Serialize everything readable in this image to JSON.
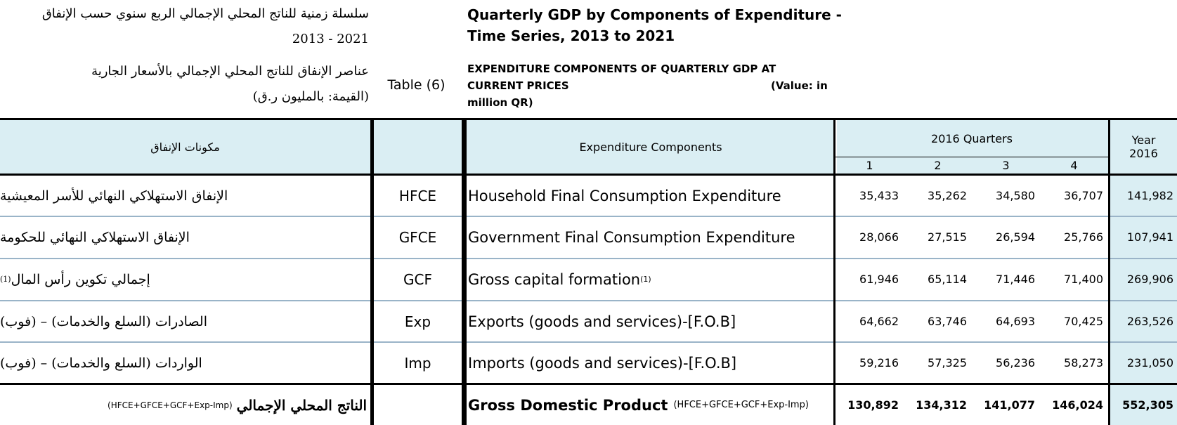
{
  "header": {
    "ar_title_line1": "سلسلة زمنية للناتج المحلي الإجمالي الربع سنوي حسب الإنفاق",
    "ar_title_line2": "2021 - 2013",
    "ar_subtitle_line1": "عناصر الإنفاق للناتج المحلي الإجمالي بالأسعار الجارية",
    "ar_subtitle_line2": "(القيمة: بالمليون ر.ق)",
    "table_label": "Table (6)",
    "en_title_line1": "Quarterly GDP by Components of Expenditure -",
    "en_title_line2": "Time Series, 2013 to 2021",
    "en_subtitle_line1": "EXPENDITURE COMPONENTS OF QUARTERLY GDP AT",
    "en_subtitle_line2": "CURRENT PRICES",
    "en_subtitle_line3": "million QR)",
    "en_unit_label": "(Value: in"
  },
  "columns": {
    "ar_components": "مكونات الإنفاق",
    "en_components": "Expenditure Components",
    "quarters_group": "2016 Quarters",
    "quarters": [
      "1",
      "2",
      "3",
      "4"
    ],
    "year_line1": "Year",
    "year_line2": "2016"
  },
  "rows": [
    {
      "ar": "الإنفاق الاستهلاكي النهائي للأسر المعيشية",
      "ar_sup": "",
      "code": "HFCE",
      "en": "Household Final Consumption Expenditure",
      "en_sup": "",
      "q1": "35,433",
      "q2": "35,262",
      "q3": "34,580",
      "q4": "36,707",
      "year": "141,982"
    },
    {
      "ar": "الإنفاق الاستهلاكي النهائي للحكومة",
      "ar_sup": "",
      "code": "GFCE",
      "en": "Government Final Consumption Expenditure",
      "en_sup": "",
      "q1": "28,066",
      "q2": "27,515",
      "q3": "26,594",
      "q4": "25,766",
      "year": "107,941"
    },
    {
      "ar": "إجمالي تكوين رأس المال",
      "ar_sup": "(1)",
      "code": "GCF",
      "en": "Gross capital formation",
      "en_sup": "(1)",
      "q1": "61,946",
      "q2": "65,114",
      "q3": "71,446",
      "q4": "71,400",
      "year": "269,906"
    },
    {
      "ar": "الصادرات (السلع والخدمات) – (فوب)",
      "ar_sup": "",
      "code": "Exp",
      "en": "Exports (goods and services)-[F.O.B]",
      "en_sup": "",
      "q1": "64,662",
      "q2": "63,746",
      "q3": "64,693",
      "q4": "70,425",
      "year": "263,526"
    },
    {
      "ar": "الواردات (السلع والخدمات) – (فوب)",
      "ar_sup": "",
      "code": "Imp",
      "en": "Imports (goods and services)-[F.O.B]",
      "en_sup": "",
      "q1": "59,216",
      "q2": "57,325",
      "q3": "56,236",
      "q4": "58,273",
      "year": "231,050"
    }
  ],
  "total": {
    "ar": "الناتج المحلي الإجمالي",
    "ar_formula": "(HFCE+GFCE+GCF+Exp-Imp)",
    "en": "Gross Domestic Product",
    "en_formula": "(HFCE+GFCE+GCF+Exp-Imp)",
    "q1": "130,892",
    "q2": "134,312",
    "q3": "141,077",
    "q4": "146,024",
    "year": "552,305"
  },
  "colors": {
    "header_fill": "#daeef3",
    "year_fill": "#daeef3",
    "row_separator": "#9ab4c8",
    "border": "#000000"
  }
}
